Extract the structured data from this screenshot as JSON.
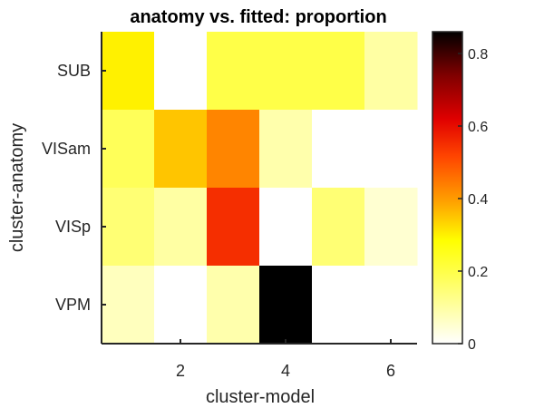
{
  "chart_data": {
    "type": "heatmap",
    "title": "anatomy vs. fitted: proportion",
    "xlabel": "cluster-model",
    "ylabel": "cluster-anatomy",
    "x_categories": [
      1,
      2,
      3,
      4,
      5,
      6
    ],
    "x_ticks": [
      "2",
      "4",
      "6"
    ],
    "y_categories": [
      "SUB",
      "VISam",
      "VISp",
      "VPM"
    ],
    "values": [
      [
        0.3,
        0.0,
        0.2,
        0.2,
        0.2,
        0.1
      ],
      [
        0.18,
        0.35,
        0.43,
        0.09,
        0.0,
        0.0
      ],
      [
        0.15,
        0.1,
        0.55,
        0.0,
        0.15,
        0.05
      ],
      [
        0.07,
        0.0,
        0.09,
        0.86,
        0.0,
        0.0
      ]
    ],
    "colormap": "hot (reversed)",
    "colorbar": {
      "range": [
        0,
        0.86
      ],
      "ticks": [
        "0",
        "0.2",
        "0.4",
        "0.6",
        "0.8"
      ],
      "tick_values": [
        0,
        0.2,
        0.4,
        0.6,
        0.8
      ]
    },
    "grid": false,
    "legend": "colorbar right"
  }
}
